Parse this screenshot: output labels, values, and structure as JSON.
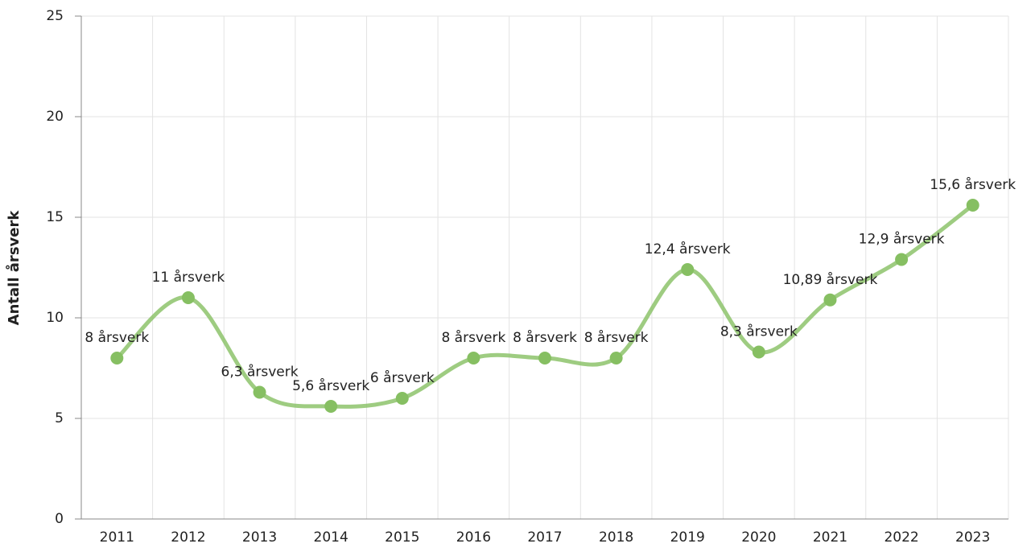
{
  "chart_data": {
    "type": "line",
    "y_label": "Antall årsverk",
    "categories": [
      "2011",
      "2012",
      "2013",
      "2014",
      "2015",
      "2016",
      "2017",
      "2018",
      "2019",
      "2020",
      "2021",
      "2022",
      "2023"
    ],
    "series": [
      {
        "name": "Antall årsverk",
        "color": "#86bf62",
        "values": [
          8,
          11,
          6.3,
          5.6,
          6,
          8,
          8,
          8,
          12.4,
          8.3,
          10.89,
          12.9,
          15.6
        ],
        "value_labels": [
          "8 årsverk",
          "11 årsverk",
          "6,3 årsverk",
          "5,6 årsverk",
          "6 årsverk",
          "8 årsverk",
          "8 årsverk",
          "8 årsverk",
          "12,4 årsverk",
          "8,3 årsverk",
          "10,89 årsverk",
          "12,9 årsverk",
          "15,6 årsverk"
        ]
      }
    ],
    "ylim": [
      0,
      25
    ],
    "yticks": [
      0,
      5,
      10,
      15,
      20,
      25
    ],
    "grid": true,
    "smooth": true
  }
}
